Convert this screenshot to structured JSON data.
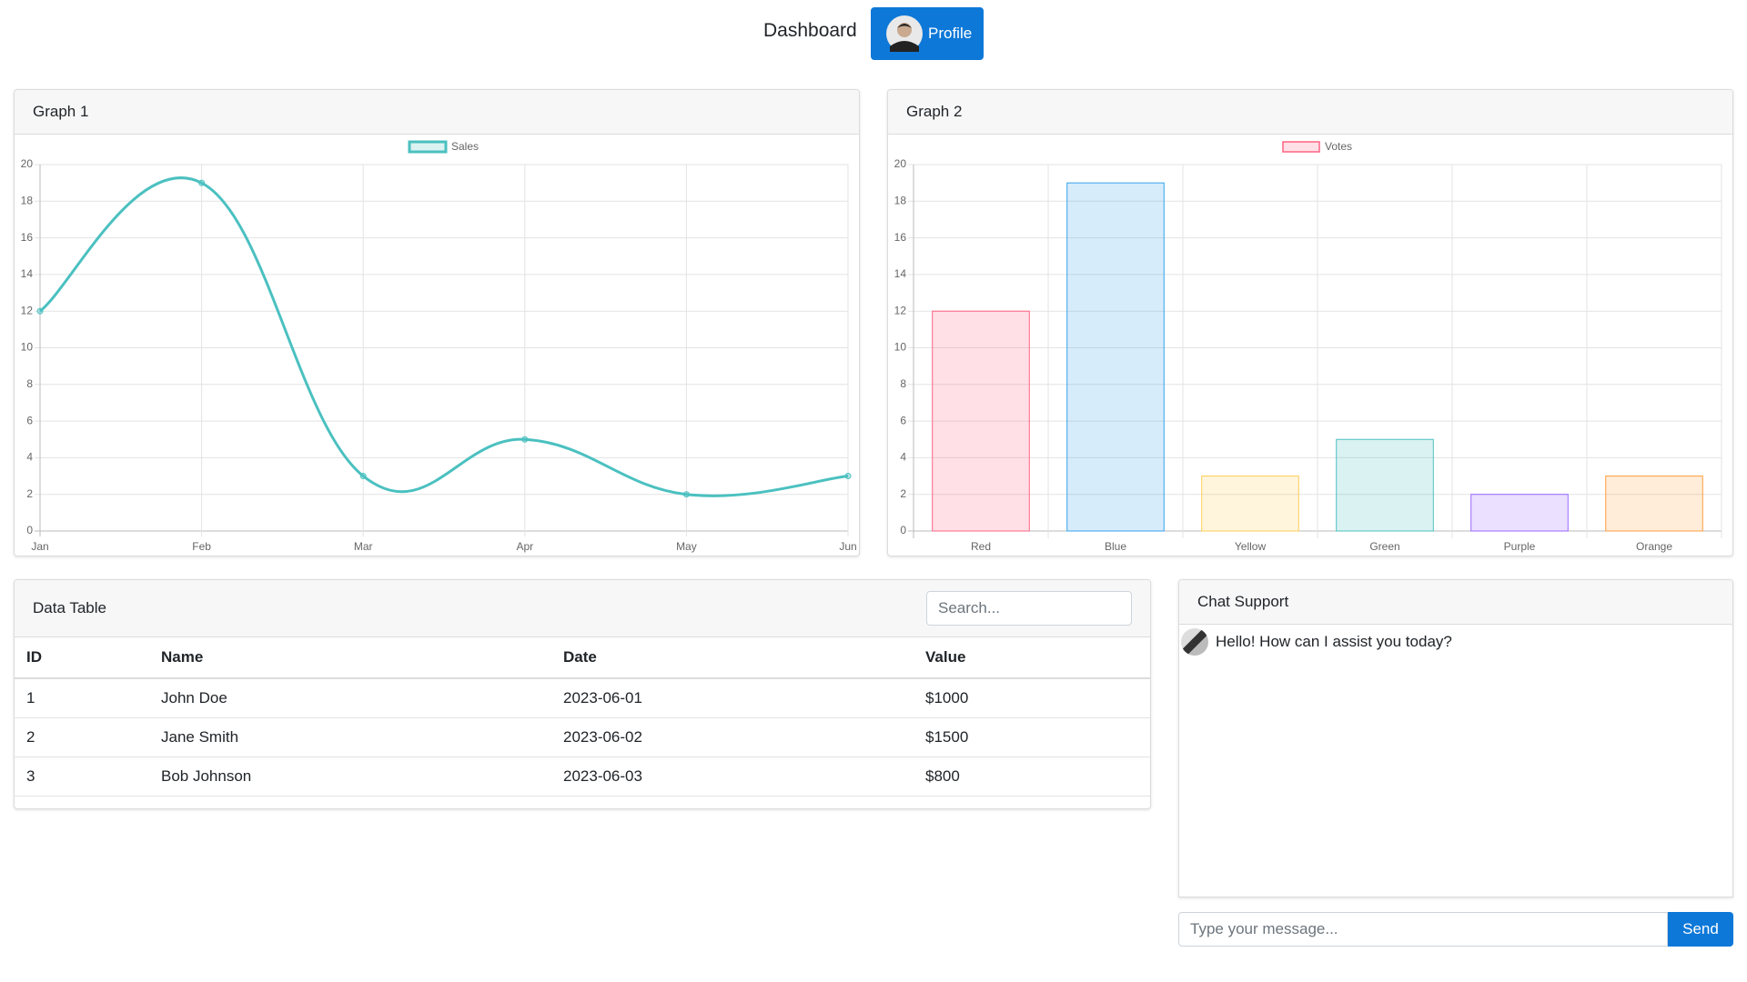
{
  "header": {
    "title": "Dashboard",
    "profile": "Profile"
  },
  "chart_data": [
    {
      "type": "line",
      "title": "Graph 1",
      "categories": [
        "Jan",
        "Feb",
        "Mar",
        "Apr",
        "May",
        "Jun"
      ],
      "series": [
        {
          "name": "Sales",
          "color": "#4bc0c0",
          "values": [
            12,
            19,
            3,
            5,
            2,
            3
          ]
        }
      ],
      "ylim": [
        0,
        20
      ],
      "yticks": [
        0,
        2,
        4,
        6,
        8,
        10,
        12,
        14,
        16,
        18,
        20
      ],
      "grid": true
    },
    {
      "type": "bar",
      "title": "Graph 2",
      "categories": [
        "Red",
        "Blue",
        "Yellow",
        "Green",
        "Purple",
        "Orange"
      ],
      "series": [
        {
          "name": "Votes",
          "values": [
            12,
            19,
            3,
            5,
            2,
            3
          ],
          "colors": [
            "#ff6384",
            "#36a2eb",
            "#ffce56",
            "#4bc0c0",
            "#9966ff",
            "#ff9f40"
          ]
        }
      ],
      "ylim": [
        0,
        20
      ],
      "yticks": [
        0,
        2,
        4,
        6,
        8,
        10,
        12,
        14,
        16,
        18,
        20
      ],
      "grid": true
    }
  ],
  "table": {
    "title": "Data Table",
    "search_placeholder": "Search...",
    "columns": [
      "ID",
      "Name",
      "Date",
      "Value"
    ],
    "rows": [
      [
        "1",
        "John Doe",
        "2023-06-01",
        "$1000"
      ],
      [
        "2",
        "Jane Smith",
        "2023-06-02",
        "$1500"
      ],
      [
        "3",
        "Bob Johnson",
        "2023-06-03",
        "$800"
      ]
    ]
  },
  "chat": {
    "title": "Chat Support",
    "messages": [
      "Hello! How can I assist you today?"
    ],
    "input_placeholder": "Type your message...",
    "send": "Send"
  }
}
